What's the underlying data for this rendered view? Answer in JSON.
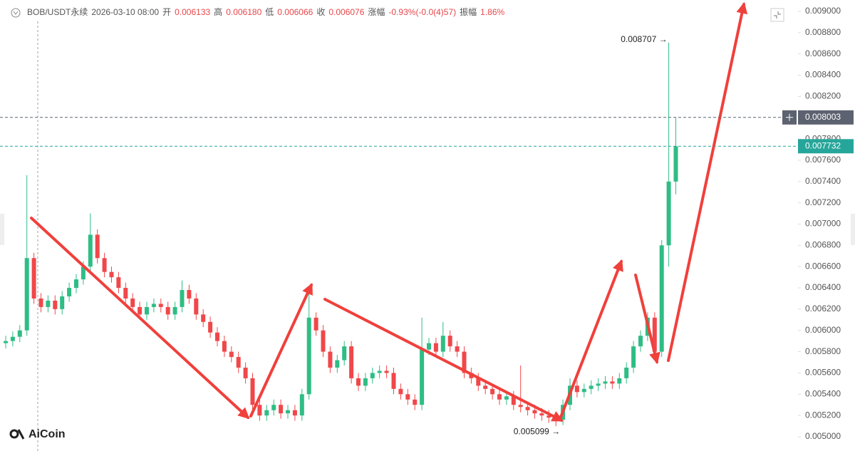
{
  "chart_data": {
    "type": "candlestick",
    "header": [
      {
        "text": "BOB/USDT永续",
        "color": "#555"
      },
      {
        "text": "2026-03-10 08:00",
        "color": "#555"
      },
      {
        "text": "开",
        "color": "#555"
      },
      {
        "text": "0.006133",
        "color": "#e8464a"
      },
      {
        "text": "高",
        "color": "#555"
      },
      {
        "text": "0.006180",
        "color": "#e8464a"
      },
      {
        "text": "低",
        "color": "#555"
      },
      {
        "text": "0.006066",
        "color": "#e8464a"
      },
      {
        "text": "收",
        "color": "#555"
      },
      {
        "text": "0.006076",
        "color": "#e8464a"
      },
      {
        "text": "涨幅",
        "color": "#555"
      },
      {
        "text": "-0.93%(-0.0(4)57)",
        "color": "#e8464a"
      },
      {
        "text": "振幅",
        "color": "#555"
      },
      {
        "text": "1.86%",
        "color": "#e8464a"
      }
    ],
    "up_color": "#2ebd85",
    "down_color": "#f0474a",
    "open": [
      0.00588,
      0.0059,
      0.00594,
      0.006,
      0.00668,
      0.0063,
      0.00622,
      0.00628,
      0.0062,
      0.00632,
      0.0064,
      0.00648,
      0.0066,
      0.0069,
      0.00668,
      0.00655,
      0.0065,
      0.0064,
      0.0063,
      0.00622,
      0.00615,
      0.00622,
      0.00625,
      0.00622,
      0.00615,
      0.00622,
      0.00638,
      0.0063,
      0.00615,
      0.00608,
      0.00598,
      0.0059,
      0.0058,
      0.00575,
      0.00565,
      0.00555,
      0.0053,
      0.0052,
      0.00525,
      0.0053,
      0.00522,
      0.00525,
      0.0052,
      0.0054,
      0.00612,
      0.006,
      0.0058,
      0.00565,
      0.00572,
      0.00585,
      0.00555,
      0.00548,
      0.00555,
      0.0056,
      0.00562,
      0.0056,
      0.00545,
      0.0054,
      0.00535,
      0.0053,
      0.00582,
      0.00588,
      0.0058,
      0.00595,
      0.00585,
      0.0058,
      0.0056,
      0.00555,
      0.00548,
      0.00545,
      0.0054,
      0.00535,
      0.00538,
      0.0053,
      0.00528,
      0.00525,
      0.00522,
      0.0052,
      0.00518,
      0.00516,
      0.0053,
      0.00548,
      0.00542,
      0.00545,
      0.00548,
      0.0055,
      0.00552,
      0.0055,
      0.00555,
      0.00565,
      0.00585,
      0.00595,
      0.00612,
      0.0058,
      0.0068,
      0.0074
    ],
    "high": [
      0.00595,
      0.00599,
      0.00605,
      0.00746,
      0.00673,
      0.00635,
      0.00633,
      0.00633,
      0.00637,
      0.00645,
      0.00653,
      0.00665,
      0.0071,
      0.00695,
      0.00673,
      0.0066,
      0.00655,
      0.00645,
      0.00635,
      0.00627,
      0.00627,
      0.0063,
      0.0063,
      0.00627,
      0.00627,
      0.00647,
      0.00643,
      0.00635,
      0.0062,
      0.00613,
      0.00603,
      0.00595,
      0.00585,
      0.0058,
      0.0057,
      0.0056,
      0.00535,
      0.0053,
      0.00535,
      0.00535,
      0.0053,
      0.0053,
      0.00545,
      0.0064,
      0.00617,
      0.00605,
      0.00585,
      0.00577,
      0.0059,
      0.0059,
      0.0056,
      0.0056,
      0.00565,
      0.00567,
      0.00567,
      0.00565,
      0.0055,
      0.00545,
      0.0054,
      0.00612,
      0.00593,
      0.00593,
      0.00608,
      0.006,
      0.0059,
      0.00585,
      0.00565,
      0.0056,
      0.00553,
      0.0055,
      0.00545,
      0.00543,
      0.00543,
      0.00567,
      0.00533,
      0.0053,
      0.00527,
      0.00525,
      0.00523,
      0.00535,
      0.00555,
      0.00553,
      0.0055,
      0.00553,
      0.00555,
      0.00557,
      0.00557,
      0.0056,
      0.0057,
      0.0059,
      0.006,
      0.00617,
      0.00617,
      0.00685,
      0.008707,
      0.008
    ],
    "low": [
      0.00583,
      0.00585,
      0.00589,
      0.00595,
      0.00625,
      0.00617,
      0.00617,
      0.00615,
      0.00615,
      0.00627,
      0.00635,
      0.00643,
      0.00655,
      0.00663,
      0.0065,
      0.00645,
      0.00635,
      0.00625,
      0.00617,
      0.0061,
      0.0061,
      0.00617,
      0.00617,
      0.0061,
      0.0061,
      0.00617,
      0.00625,
      0.0061,
      0.00603,
      0.00593,
      0.00585,
      0.00575,
      0.0057,
      0.0056,
      0.0055,
      0.00525,
      0.00515,
      0.00515,
      0.0052,
      0.00517,
      0.00517,
      0.00515,
      0.00515,
      0.00535,
      0.00595,
      0.00575,
      0.0056,
      0.0056,
      0.00567,
      0.0055,
      0.00543,
      0.00543,
      0.0055,
      0.00555,
      0.00555,
      0.0054,
      0.00535,
      0.0053,
      0.00525,
      0.00525,
      0.00577,
      0.00575,
      0.00575,
      0.0058,
      0.00575,
      0.00555,
      0.0055,
      0.00543,
      0.0054,
      0.00535,
      0.0053,
      0.0053,
      0.00525,
      0.00523,
      0.0052,
      0.00517,
      0.00515,
      0.00513,
      0.005099,
      0.00511,
      0.00525,
      0.00537,
      0.00537,
      0.0054,
      0.00543,
      0.00545,
      0.00545,
      0.00545,
      0.0055,
      0.0056,
      0.0058,
      0.0059,
      0.00575,
      0.00575,
      0.0066,
      0.00728
    ],
    "close": [
      0.0059,
      0.00594,
      0.006,
      0.00668,
      0.0063,
      0.00622,
      0.00628,
      0.0062,
      0.00632,
      0.0064,
      0.00648,
      0.0066,
      0.0069,
      0.00668,
      0.00655,
      0.0065,
      0.0064,
      0.0063,
      0.00622,
      0.00615,
      0.00622,
      0.00625,
      0.00622,
      0.00615,
      0.00622,
      0.00638,
      0.0063,
      0.00615,
      0.00608,
      0.00598,
      0.0059,
      0.0058,
      0.00575,
      0.00565,
      0.00555,
      0.0053,
      0.0052,
      0.00525,
      0.0053,
      0.00522,
      0.00525,
      0.0052,
      0.0054,
      0.00612,
      0.006,
      0.0058,
      0.00565,
      0.00572,
      0.00585,
      0.00555,
      0.00548,
      0.00555,
      0.0056,
      0.00562,
      0.0056,
      0.00545,
      0.0054,
      0.00535,
      0.0053,
      0.00582,
      0.00588,
      0.0058,
      0.00595,
      0.00585,
      0.0058,
      0.0056,
      0.00555,
      0.00548,
      0.00545,
      0.0054,
      0.00535,
      0.00538,
      0.0053,
      0.00528,
      0.00525,
      0.00522,
      0.0052,
      0.00518,
      0.00516,
      0.0053,
      0.00548,
      0.00542,
      0.00545,
      0.00548,
      0.0055,
      0.00552,
      0.0055,
      0.00555,
      0.00565,
      0.00585,
      0.00595,
      0.00612,
      0.0058,
      0.0068,
      0.0074,
      0.007732
    ],
    "ylim": [
      0.005,
      0.009
    ],
    "yticks": [
      {
        "value": 0.005,
        "label": "0.005000"
      },
      {
        "value": 0.0052,
        "label": "0.005200"
      },
      {
        "value": 0.0054,
        "label": "0.005400"
      },
      {
        "value": 0.0056,
        "label": "0.005600"
      },
      {
        "value": 0.0058,
        "label": "0.005800"
      },
      {
        "value": 0.006,
        "label": "0.006000"
      },
      {
        "value": 0.0062,
        "label": "0.006200"
      },
      {
        "value": 0.0064,
        "label": "0.006400"
      },
      {
        "value": 0.0066,
        "label": "0.006600"
      },
      {
        "value": 0.0068,
        "label": "0.006800"
      },
      {
        "value": 0.007,
        "label": "0.007000"
      },
      {
        "value": 0.0072,
        "label": "0.007200"
      },
      {
        "value": 0.0074,
        "label": "0.007400"
      },
      {
        "value": 0.0076,
        "label": "0.007600"
      },
      {
        "value": 0.0078,
        "label": "0.007800"
      },
      {
        "value": 0.008,
        "label": "0.008000"
      },
      {
        "value": 0.0082,
        "label": "0.008200"
      },
      {
        "value": 0.0084,
        "label": "0.008400"
      },
      {
        "value": 0.0086,
        "label": "0.008600"
      },
      {
        "value": 0.0088,
        "label": "0.008800"
      },
      {
        "value": 0.009,
        "label": "0.009000"
      }
    ],
    "grid": false,
    "price_lines": [
      {
        "value": 0.008003,
        "label": "0.008003",
        "color": "#5d6270"
      },
      {
        "value": 0.007732,
        "label": "0.007732",
        "color": "#26a69a"
      }
    ],
    "max_label": "0.008707 →",
    "min_label": "0.005099 →",
    "logo": "AiCoin"
  }
}
